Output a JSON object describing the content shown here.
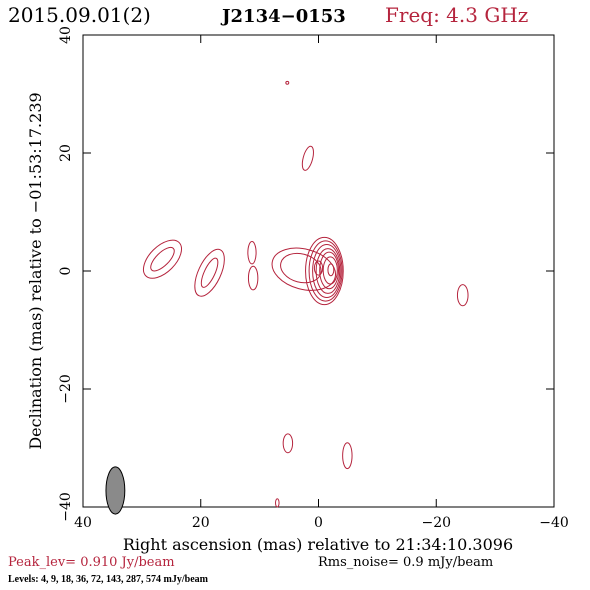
{
  "header": {
    "date": "2015.09.01(2)",
    "source": "J2134−0153",
    "freq": "Freq: 4.3 GHz"
  },
  "colors": {
    "contour": "#b5243d",
    "accent": "#b5243d",
    "beam_fill": "#8a8a8a",
    "axis": "#000000"
  },
  "footer": {
    "peak": "Peak_lev=  0.910 Jy/beam",
    "rms": "Rms_noise=   0.9 mJy/beam",
    "levels": "Levels:   4,   9,  18,  36,  72, 143, 287, 574 mJy/beam"
  },
  "chart_data": {
    "type": "contour",
    "xlabel": "Right ascension (mas) relative to 21:34:10.3096",
    "ylabel": "Declination (mas) relative to −01:53:17.239",
    "xlim": [
      40,
      -40
    ],
    "ylim": [
      -40,
      40
    ],
    "x_ticks": [
      "40",
      "20",
      "0",
      "−20",
      "−40"
    ],
    "y_ticks": [
      "−40",
      "−20",
      "0",
      "20",
      "40"
    ],
    "x_tick_values": [
      40,
      20,
      0,
      -20,
      -40
    ],
    "y_tick_values": [
      -40,
      -20,
      0,
      20,
      40
    ],
    "levels_mJy": [
      4,
      9,
      18,
      36,
      72,
      143,
      287,
      574
    ],
    "peak_Jy_per_beam": 0.91,
    "rms_mJy_per_beam": 0.9,
    "beam": {
      "x": 34.5,
      "y": -37.2,
      "bmaj": 4.0,
      "bmin": 1.6,
      "pa": 0
    },
    "contours": [
      {
        "group": "core",
        "cx": -1.0,
        "cy": 0.0,
        "rx": 3.2,
        "ry": 5.7,
        "angle": 0
      },
      {
        "group": "core",
        "cx": -1.2,
        "cy": 0.0,
        "rx": 2.8,
        "ry": 5.1,
        "angle": 0
      },
      {
        "group": "core",
        "cx": -1.4,
        "cy": 0.0,
        "rx": 2.4,
        "ry": 4.5,
        "angle": 0
      },
      {
        "group": "core",
        "cx": -1.6,
        "cy": 0.0,
        "rx": 2.0,
        "ry": 3.8,
        "angle": 0
      },
      {
        "group": "core",
        "cx": -1.8,
        "cy": 0.1,
        "rx": 1.6,
        "ry": 3.1,
        "angle": 0
      },
      {
        "group": "core",
        "cx": -2.0,
        "cy": 0.1,
        "rx": 1.2,
        "ry": 2.3,
        "angle": 0
      },
      {
        "group": "core",
        "cx": 0.0,
        "cy": 0.5,
        "rx": 0.7,
        "ry": 1.2,
        "angle": 0
      },
      {
        "group": "core",
        "cx": -2.1,
        "cy": 0.2,
        "rx": 0.5,
        "ry": 1.0,
        "angle": 0
      },
      {
        "group": "core_ext",
        "cx": 2.5,
        "cy": 0.3,
        "rx": 5.5,
        "ry": 3.4,
        "angle": 15
      },
      {
        "group": "core_ext",
        "cx": 3.0,
        "cy": 0.5,
        "rx": 3.5,
        "ry": 2.4,
        "angle": 15
      },
      {
        "group": "jet1",
        "cx": 26.5,
        "cy": 2.0,
        "rx": 4.0,
        "ry": 2.2,
        "angle": -45
      },
      {
        "group": "jet1",
        "cx": 26.5,
        "cy": 2.0,
        "rx": 2.6,
        "ry": 1.1,
        "angle": -45
      },
      {
        "group": "jet2",
        "cx": 18.5,
        "cy": -0.3,
        "rx": 4.3,
        "ry": 1.9,
        "angle": -65
      },
      {
        "group": "jet2",
        "cx": 18.5,
        "cy": -0.3,
        "rx": 2.7,
        "ry": 0.9,
        "angle": -65
      },
      {
        "group": "blob",
        "cx": 11.3,
        "cy": 3.1,
        "rx": 0.7,
        "ry": 1.9,
        "angle": 0
      },
      {
        "group": "blob",
        "cx": 11.1,
        "cy": -1.2,
        "rx": 0.8,
        "ry": 2.0,
        "angle": 0
      },
      {
        "group": "blob",
        "cx": 1.8,
        "cy": 19.1,
        "rx": 0.8,
        "ry": 2.1,
        "angle": 15
      },
      {
        "group": "blob",
        "cx": 5.3,
        "cy": 31.9,
        "rx": 0.25,
        "ry": 0.25,
        "angle": 0
      },
      {
        "group": "blob",
        "cx": -24.5,
        "cy": -4.1,
        "rx": 0.9,
        "ry": 1.8,
        "angle": 0
      },
      {
        "group": "blob",
        "cx": 5.2,
        "cy": -29.2,
        "rx": 0.8,
        "ry": 1.6,
        "angle": 0
      },
      {
        "group": "blob",
        "cx": -4.9,
        "cy": -31.3,
        "rx": 0.8,
        "ry": 2.2,
        "angle": 0
      },
      {
        "group": "blob",
        "cx": 7.0,
        "cy": -39.3,
        "rx": 0.3,
        "ry": 0.7,
        "angle": 0
      }
    ]
  }
}
